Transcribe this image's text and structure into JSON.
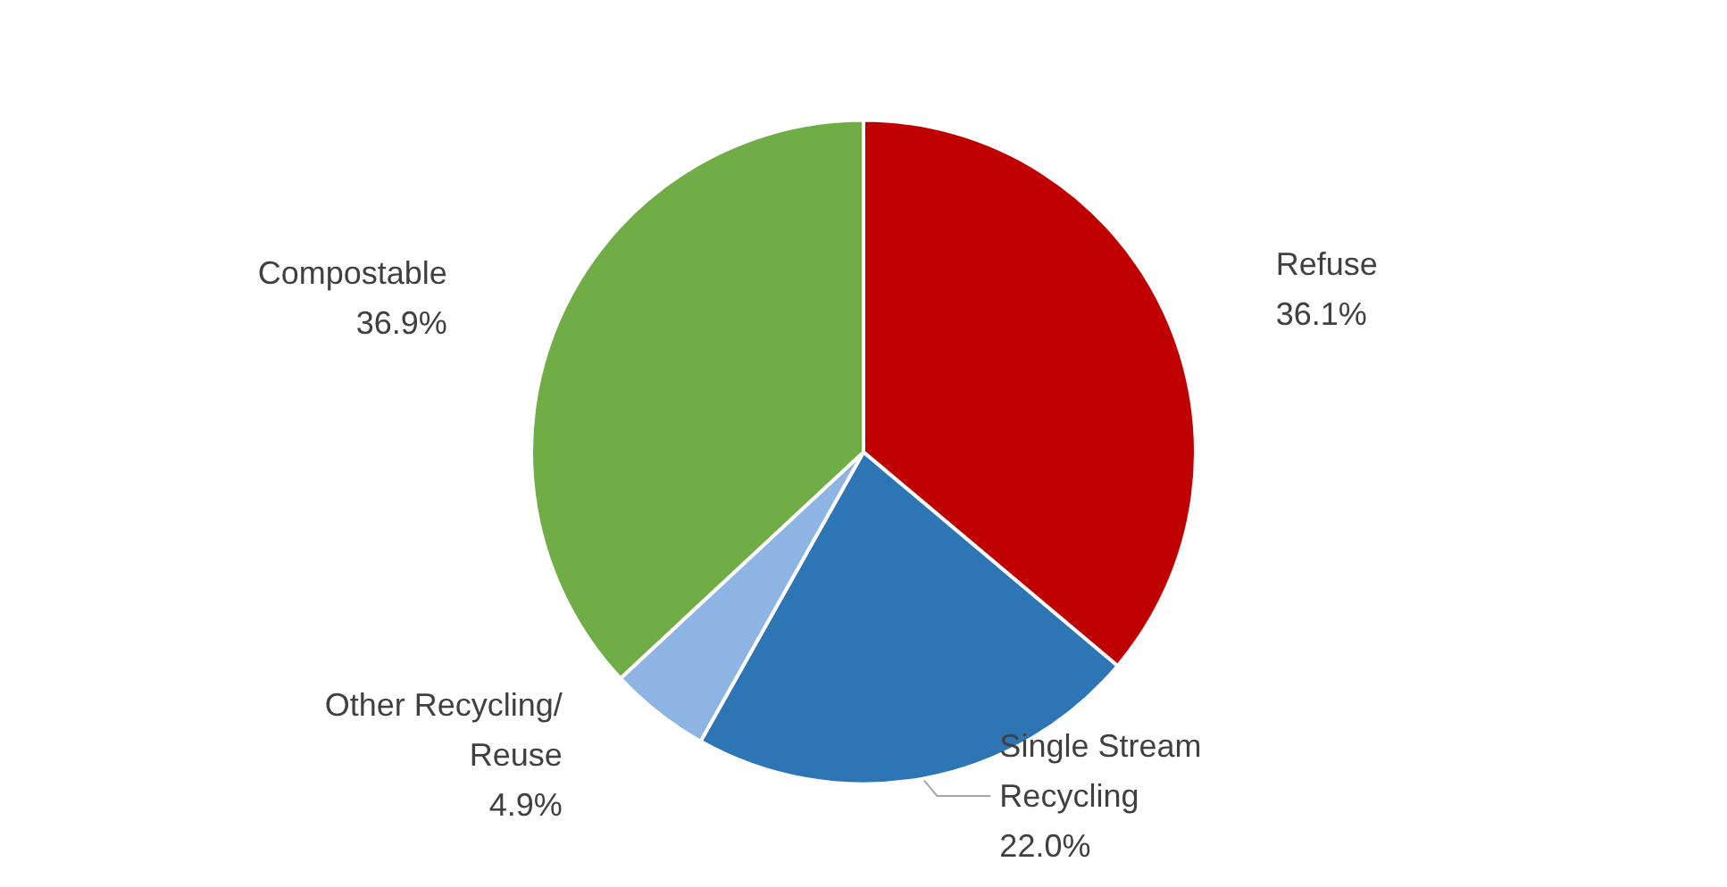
{
  "chart_data": {
    "type": "pie",
    "categories": [
      "Refuse",
      "Single Stream Recycling",
      "Other Recycling/Reuse",
      "Compostable"
    ],
    "values": [
      36.1,
      22.0,
      4.9,
      36.9
    ],
    "value_labels": [
      "36.1%",
      "22.0%",
      "4.9%",
      "36.9%"
    ],
    "colors": [
      "#c00000",
      "#2e75b6",
      "#8eb4e3",
      "#70ad47"
    ],
    "legend": false
  }
}
